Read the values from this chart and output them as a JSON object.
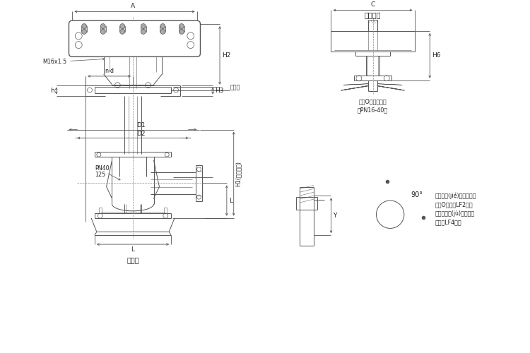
{
  "bg_color": "#ffffff",
  "line_color": "#555555",
  "dim_color": "#555555",
  "text_color": "#222222",
  "fig_width": 7.5,
  "fig_height": 5.0,
  "labels": {
    "A": "A",
    "H2": "H2",
    "H3": "H3",
    "H1": "H1(保溫長度)",
    "D1": "D1",
    "D2": "D2",
    "L": "L",
    "n_d": "n-d",
    "h": "h",
    "M16": "M16x1.5",
    "lianjiaban": "連接板",
    "PN40": "PN40",
    "num125": "125",
    "low_temp": "低溫型",
    "top_handwheel": "頂式手輪",
    "C": "C",
    "H6": "H6",
    "metal_o": "金屬O型圈槽尺寸",
    "PN1640": "（PN16-40）",
    "Y": "Y",
    "degree90": "90°",
    "note_text1": "低溫調節(jié)閥法蘭采用",
    "note_text2": "金屬O形圈（LF2）密",
    "note_text3": "封，可根據(jù)用戶配鋁",
    "note_text4": "肩圈（LF4）。"
  }
}
